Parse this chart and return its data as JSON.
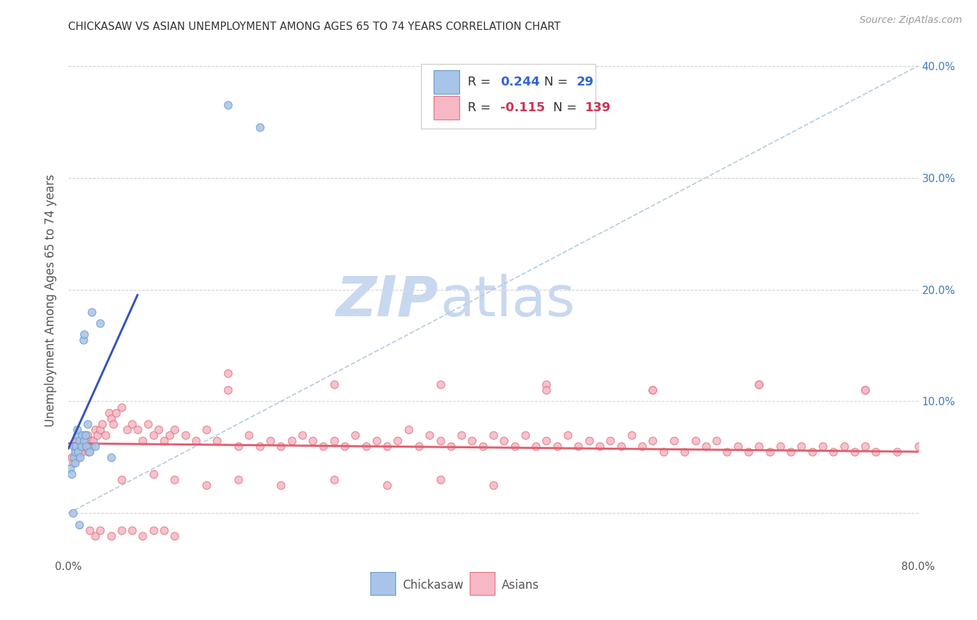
{
  "title": "CHICKASAW VS ASIAN UNEMPLOYMENT AMONG AGES 65 TO 74 YEARS CORRELATION CHART",
  "source": "Source: ZipAtlas.com",
  "ylabel": "Unemployment Among Ages 65 to 74 years",
  "xlim": [
    0.0,
    0.8
  ],
  "ylim": [
    -0.04,
    0.42
  ],
  "background_color": "#ffffff",
  "grid_color": "#cccccc",
  "watermark_zip": "ZIP",
  "watermark_atlas": "atlas",
  "watermark_color_zip": "#c8d8ef",
  "watermark_color_atlas": "#c8d8ef",
  "chickasaw_color": "#a8c4e8",
  "chickasaw_edge_color": "#6699cc",
  "asian_color": "#f5b8c4",
  "asian_edge_color": "#e07080",
  "chickasaw_line_color": "#3355bb",
  "asian_line_color": "#e06070",
  "diagonal_color": "#b8cce0",
  "right_tick_color": "#4477bb",
  "title_fontsize": 11,
  "source_fontsize": 10,
  "ylabel_fontsize": 12,
  "tick_fontsize": 11,
  "legend_fontsize": 13,
  "chickasaw_x": [
    0.002,
    0.003,
    0.004,
    0.005,
    0.005,
    0.006,
    0.006,
    0.007,
    0.008,
    0.008,
    0.009,
    0.01,
    0.01,
    0.011,
    0.012,
    0.013,
    0.014,
    0.015,
    0.015,
    0.016,
    0.017,
    0.018,
    0.02,
    0.022,
    0.025,
    0.03,
    0.04,
    0.15,
    0.18
  ],
  "chickasaw_y": [
    0.04,
    0.035,
    0.0,
    0.05,
    0.06,
    0.045,
    0.055,
    0.06,
    0.07,
    0.075,
    0.055,
    0.065,
    -0.01,
    0.05,
    0.06,
    0.07,
    0.155,
    0.065,
    0.16,
    0.07,
    0.06,
    0.08,
    0.055,
    0.18,
    0.06,
    0.17,
    0.05,
    0.365,
    0.345
  ],
  "asian_x": [
    0.003,
    0.004,
    0.005,
    0.006,
    0.007,
    0.008,
    0.009,
    0.01,
    0.011,
    0.012,
    0.013,
    0.014,
    0.015,
    0.016,
    0.017,
    0.018,
    0.019,
    0.02,
    0.021,
    0.022,
    0.023,
    0.025,
    0.027,
    0.03,
    0.032,
    0.035,
    0.038,
    0.04,
    0.042,
    0.045,
    0.05,
    0.055,
    0.06,
    0.065,
    0.07,
    0.075,
    0.08,
    0.085,
    0.09,
    0.095,
    0.1,
    0.11,
    0.12,
    0.13,
    0.14,
    0.15,
    0.16,
    0.17,
    0.18,
    0.19,
    0.2,
    0.21,
    0.22,
    0.23,
    0.24,
    0.25,
    0.26,
    0.27,
    0.28,
    0.29,
    0.3,
    0.31,
    0.32,
    0.33,
    0.34,
    0.35,
    0.36,
    0.37,
    0.38,
    0.39,
    0.4,
    0.41,
    0.42,
    0.43,
    0.44,
    0.45,
    0.46,
    0.47,
    0.48,
    0.49,
    0.5,
    0.51,
    0.52,
    0.53,
    0.54,
    0.55,
    0.56,
    0.57,
    0.58,
    0.59,
    0.6,
    0.61,
    0.62,
    0.63,
    0.64,
    0.65,
    0.66,
    0.67,
    0.68,
    0.69,
    0.7,
    0.71,
    0.72,
    0.73,
    0.74,
    0.75,
    0.76,
    0.78,
    0.8,
    0.05,
    0.08,
    0.1,
    0.13,
    0.16,
    0.2,
    0.25,
    0.3,
    0.35,
    0.4,
    0.02,
    0.025,
    0.03,
    0.04,
    0.05,
    0.06,
    0.07,
    0.08,
    0.09,
    0.1,
    0.35,
    0.45,
    0.55,
    0.65,
    0.75,
    0.15,
    0.25,
    0.45,
    0.55,
    0.65,
    0.75
  ],
  "asian_y": [
    0.05,
    0.045,
    0.06,
    0.05,
    0.055,
    0.065,
    0.05,
    0.06,
    0.055,
    0.065,
    0.055,
    0.06,
    0.07,
    0.065,
    0.06,
    0.07,
    0.055,
    0.06,
    0.065,
    0.06,
    0.065,
    0.075,
    0.07,
    0.075,
    0.08,
    0.07,
    0.09,
    0.085,
    0.08,
    0.09,
    0.095,
    0.075,
    0.08,
    0.075,
    0.065,
    0.08,
    0.07,
    0.075,
    0.065,
    0.07,
    0.075,
    0.07,
    0.065,
    0.075,
    0.065,
    0.125,
    0.06,
    0.07,
    0.06,
    0.065,
    0.06,
    0.065,
    0.07,
    0.065,
    0.06,
    0.065,
    0.06,
    0.07,
    0.06,
    0.065,
    0.06,
    0.065,
    0.075,
    0.06,
    0.07,
    0.065,
    0.06,
    0.07,
    0.065,
    0.06,
    0.07,
    0.065,
    0.06,
    0.07,
    0.06,
    0.065,
    0.06,
    0.07,
    0.06,
    0.065,
    0.06,
    0.065,
    0.06,
    0.07,
    0.06,
    0.065,
    0.055,
    0.065,
    0.055,
    0.065,
    0.06,
    0.065,
    0.055,
    0.06,
    0.055,
    0.06,
    0.055,
    0.06,
    0.055,
    0.06,
    0.055,
    0.06,
    0.055,
    0.06,
    0.055,
    0.06,
    0.055,
    0.055,
    0.06,
    0.03,
    0.035,
    0.03,
    0.025,
    0.03,
    0.025,
    0.03,
    0.025,
    0.03,
    0.025,
    -0.015,
    -0.02,
    -0.015,
    -0.02,
    -0.015,
    -0.015,
    -0.02,
    -0.015,
    -0.015,
    -0.02,
    0.115,
    0.115,
    0.11,
    0.115,
    0.11,
    0.11,
    0.115,
    0.11,
    0.11,
    0.115,
    0.11
  ]
}
